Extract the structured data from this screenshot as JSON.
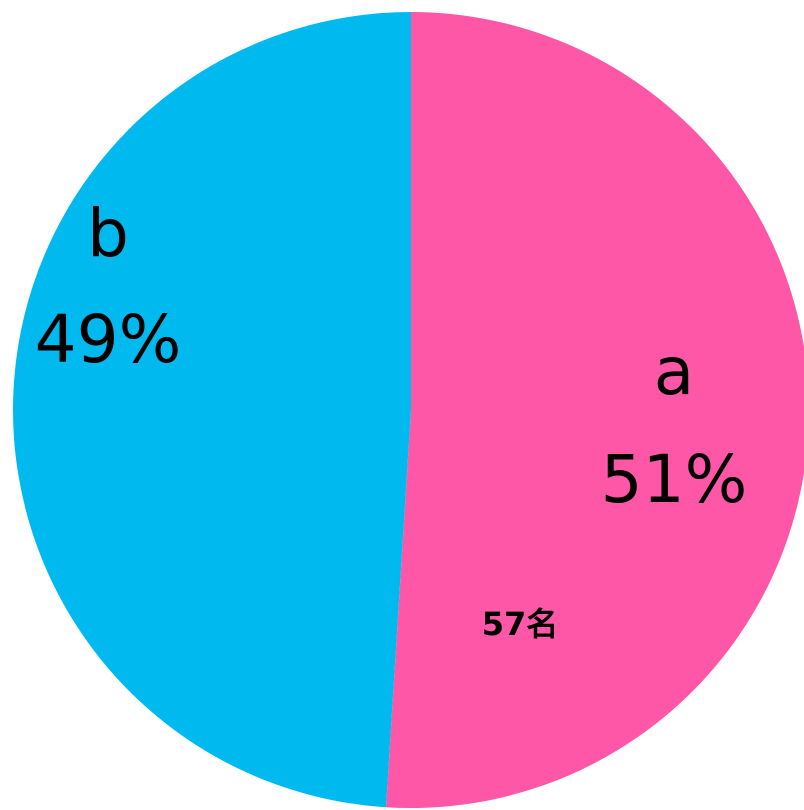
{
  "chart_data": {
    "type": "pie",
    "categories": [
      "a",
      "b"
    ],
    "values": [
      51,
      49
    ],
    "value_labels": [
      "51%",
      "49%"
    ],
    "colors": [
      "#FF57A8",
      "#00BAEF"
    ],
    "annotation": "57名"
  }
}
